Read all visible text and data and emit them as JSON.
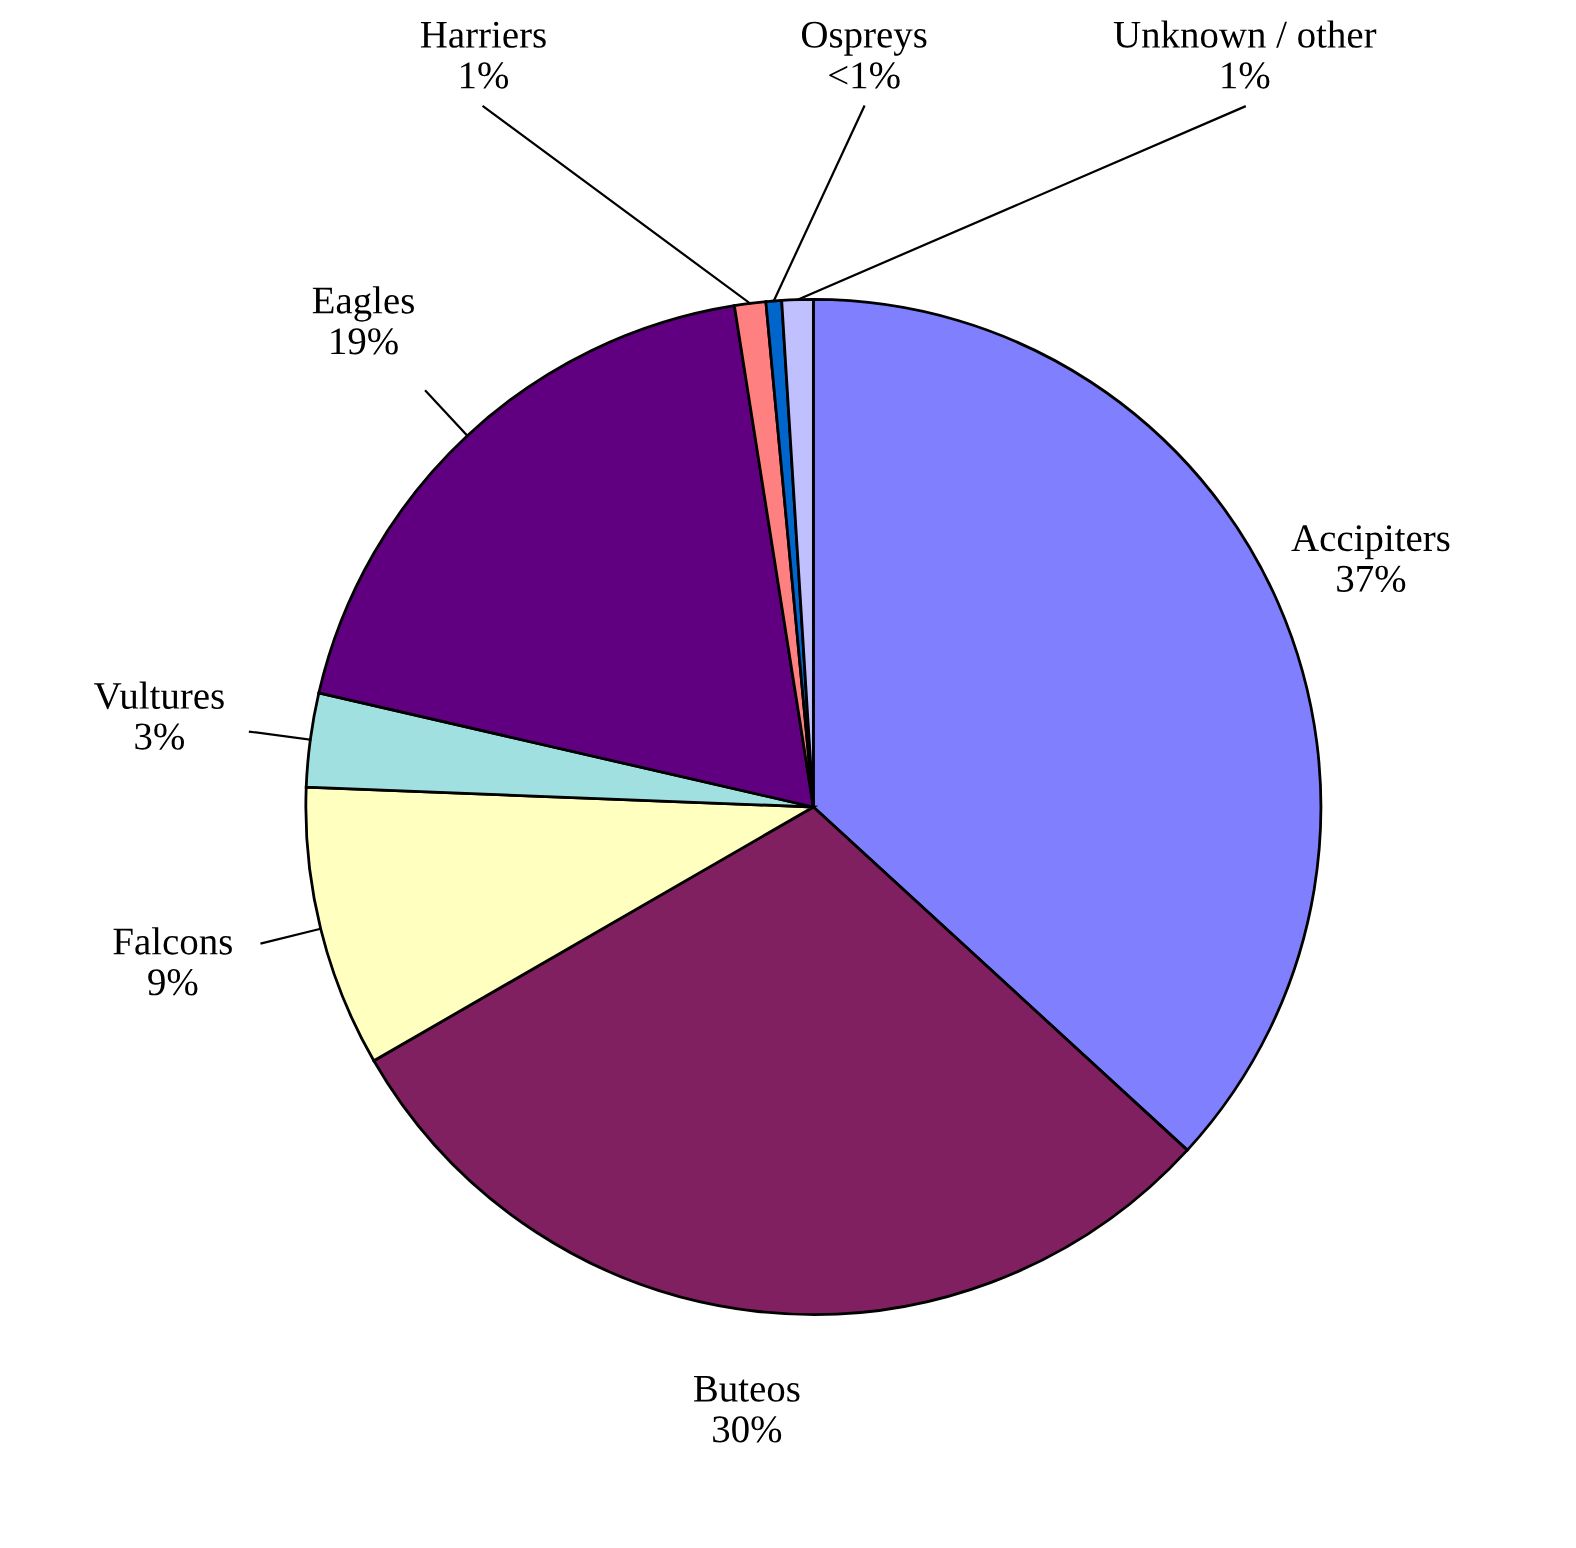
{
  "chart_data": {
    "type": "pie",
    "categories": [
      "Accipiters",
      "Buteos",
      "Falcons",
      "Vultures",
      "Eagles",
      "Harriers",
      "Ospreys",
      "Unknown / other"
    ],
    "values": [
      37,
      30,
      9,
      3,
      19,
      1,
      0.5,
      1
    ],
    "value_labels": [
      "37%",
      "30%",
      "9%",
      "3%",
      "19%",
      "1%",
      "<1%",
      "1%"
    ],
    "colors": [
      "#8080ff",
      "#802060",
      "#ffffc0",
      "#a0e0e0",
      "#600080",
      "#ff8080",
      "#0066cc",
      "#c0c0ff"
    ]
  }
}
